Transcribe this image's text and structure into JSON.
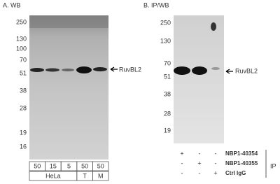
{
  "panels": [
    {
      "title": "A. WB",
      "markers": [
        "250",
        "130",
        "100",
        "70",
        "51",
        "38",
        "28",
        "19",
        "16"
      ],
      "target": "RuvBL2",
      "lanes": [
        "50",
        "15",
        "5",
        "50",
        "50"
      ],
      "groups": [
        "HeLa",
        "T",
        "M"
      ]
    },
    {
      "title": "B. IP/WB",
      "markers": [
        "250",
        "130",
        "70",
        "51",
        "38",
        "28",
        "19"
      ],
      "target": "RuvBL2",
      "rows": [
        {
          "label": "NBP1-40354",
          "marks": [
            "+",
            "-",
            "-"
          ]
        },
        {
          "label": "NBP1-40355",
          "marks": [
            "-",
            "+",
            "-"
          ]
        },
        {
          "label": "Ctrl IgG",
          "marks": [
            "-",
            "-",
            "+"
          ]
        }
      ],
      "side_label": "IP"
    }
  ]
}
